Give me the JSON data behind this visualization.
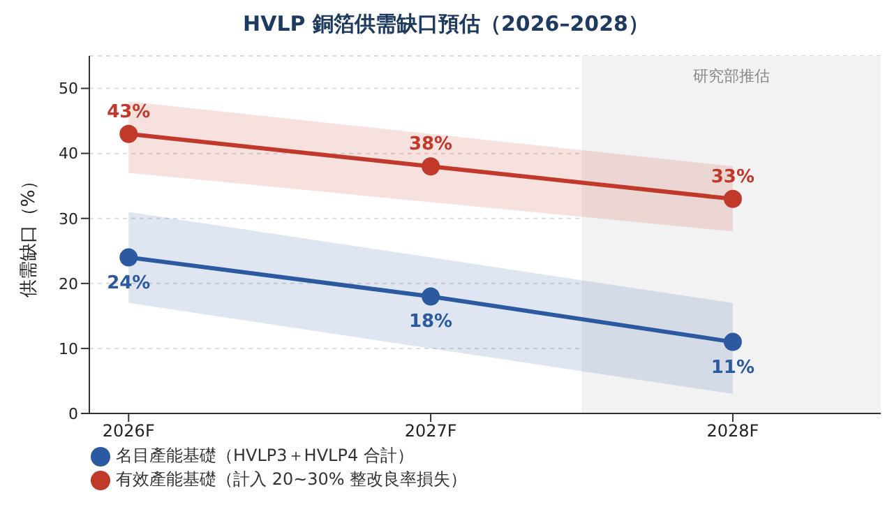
{
  "chart_data": {
    "type": "line",
    "title": "HVLP 銅箔供需缺口預估（2026–2028）",
    "ylabel": "供需缺口（%）",
    "x": [
      2026,
      2027,
      2028
    ],
    "xlim": [
      2025.87,
      2028.49
    ],
    "xticks": [
      {
        "value": 2026,
        "label": "2026F"
      },
      {
        "value": 2027,
        "label": "2027F"
      },
      {
        "value": 2028,
        "label": "2028F"
      }
    ],
    "ylim": [
      0,
      55
    ],
    "yticks": [
      0,
      10,
      20,
      30,
      40,
      50
    ],
    "series": [
      {
        "name": "有效產能基礎（計入 20~30% 整改良率損失）",
        "color": "#c0392b",
        "values": [
          43,
          38,
          33
        ],
        "lower": [
          37,
          32.5,
          28
        ],
        "upper": [
          48,
          43,
          38
        ],
        "value_labels": [
          "43%",
          "38%",
          "33%"
        ]
      },
      {
        "name": "名目產能基礎（HVLP3＋HVLP4 合計）",
        "color": "#2c5aa0",
        "values": [
          24,
          18,
          11
        ],
        "lower": [
          17,
          10,
          3
        ],
        "upper": [
          31,
          24,
          17
        ],
        "value_labels": [
          "24%",
          "18%",
          "11%"
        ]
      }
    ],
    "bands": [
      {
        "axis": "x",
        "from": 2027.5,
        "to": 2028.49,
        "label": "研究部推估",
        "color": "#f2f2f2"
      }
    ],
    "grid": "y",
    "legend": "bottom left",
    "marker": "circle",
    "line_style": "solid"
  }
}
